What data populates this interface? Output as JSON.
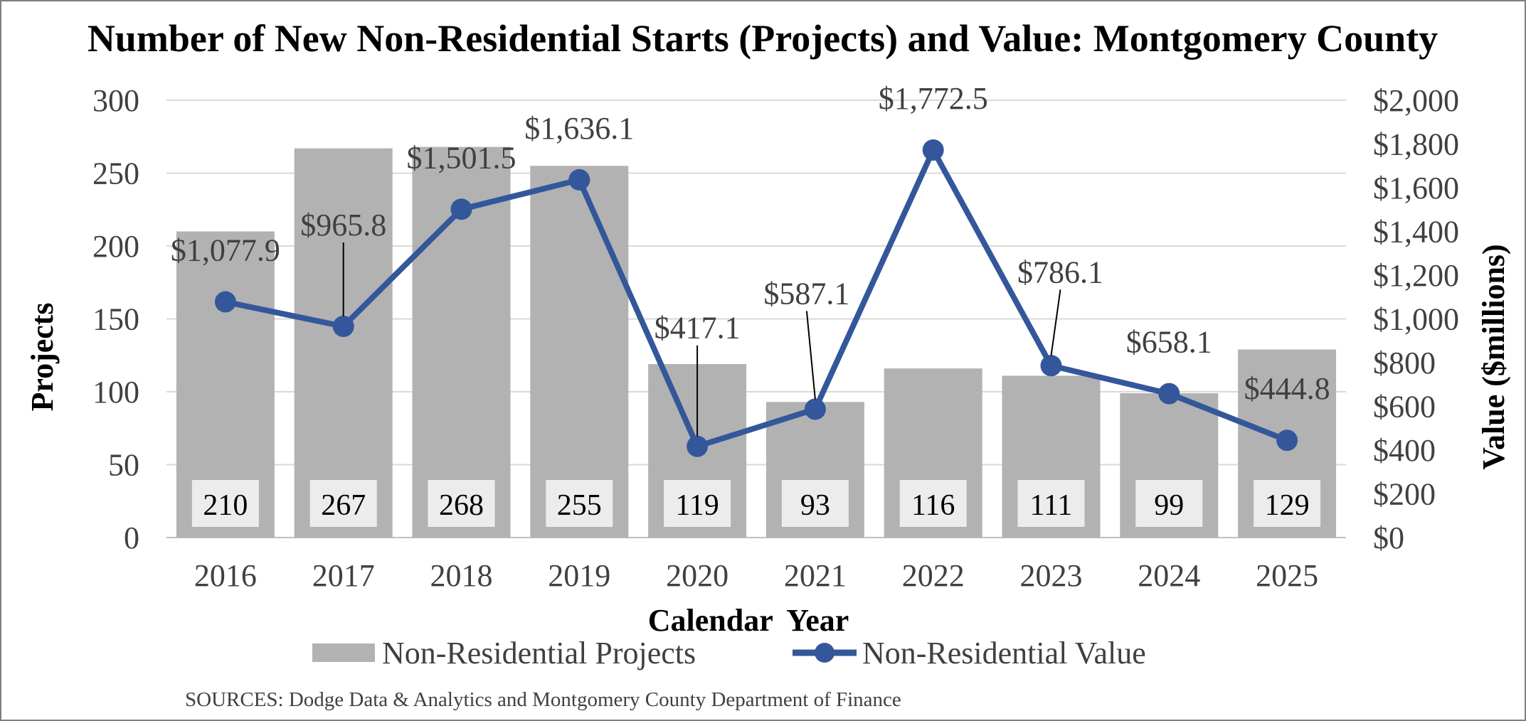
{
  "chart_data": {
    "type": "bar+line",
    "title": "Number of New Non-Residential Starts (Projects) and Value: Montgomery County",
    "xlabel": "Calendar Year",
    "ylabel_left": "Projects",
    "ylabel_right": "Value ($millions)",
    "categories": [
      "2016",
      "2017",
      "2018",
      "2019",
      "2020",
      "2021",
      "2022",
      "2023",
      "2024",
      "2025"
    ],
    "ylim_left": [
      0,
      300
    ],
    "ylim_right": [
      0,
      2000
    ],
    "left_ticks": [
      "0",
      "50",
      "100",
      "150",
      "200",
      "250",
      "300"
    ],
    "right_ticks": [
      "$0",
      "$200",
      "$400",
      "$600",
      "$800",
      "$1,000",
      "$1,200",
      "$1,400",
      "$1,600",
      "$1,800",
      "$2,000"
    ],
    "grid": true,
    "series": [
      {
        "name": "Non-Residential Projects",
        "type": "bar",
        "axis": "left",
        "color": "#b2b2b2",
        "values": [
          210,
          267,
          268,
          255,
          119,
          93,
          116,
          111,
          99,
          129
        ],
        "labels": [
          "210",
          "267",
          "268",
          "255",
          "119",
          "93",
          "116",
          "111",
          "99",
          "129"
        ]
      },
      {
        "name": "Non-Residential Value",
        "type": "line",
        "axis": "right",
        "color": "#33579a",
        "values": [
          1077.9,
          965.8,
          1501.5,
          1636.1,
          417.1,
          587.1,
          1772.5,
          786.1,
          658.1,
          444.8
        ],
        "labels": [
          "$1,077.9",
          "$965.8",
          "$1,501.5",
          "$1,636.1",
          "$417.1",
          "$587.1",
          "$1,772.5",
          "$786.1",
          "$658.1",
          "$444.8"
        ]
      }
    ],
    "legend_position": "bottom",
    "source": "SOURCES:  Dodge Data & Analytics and Montgomery County Department of Finance"
  }
}
